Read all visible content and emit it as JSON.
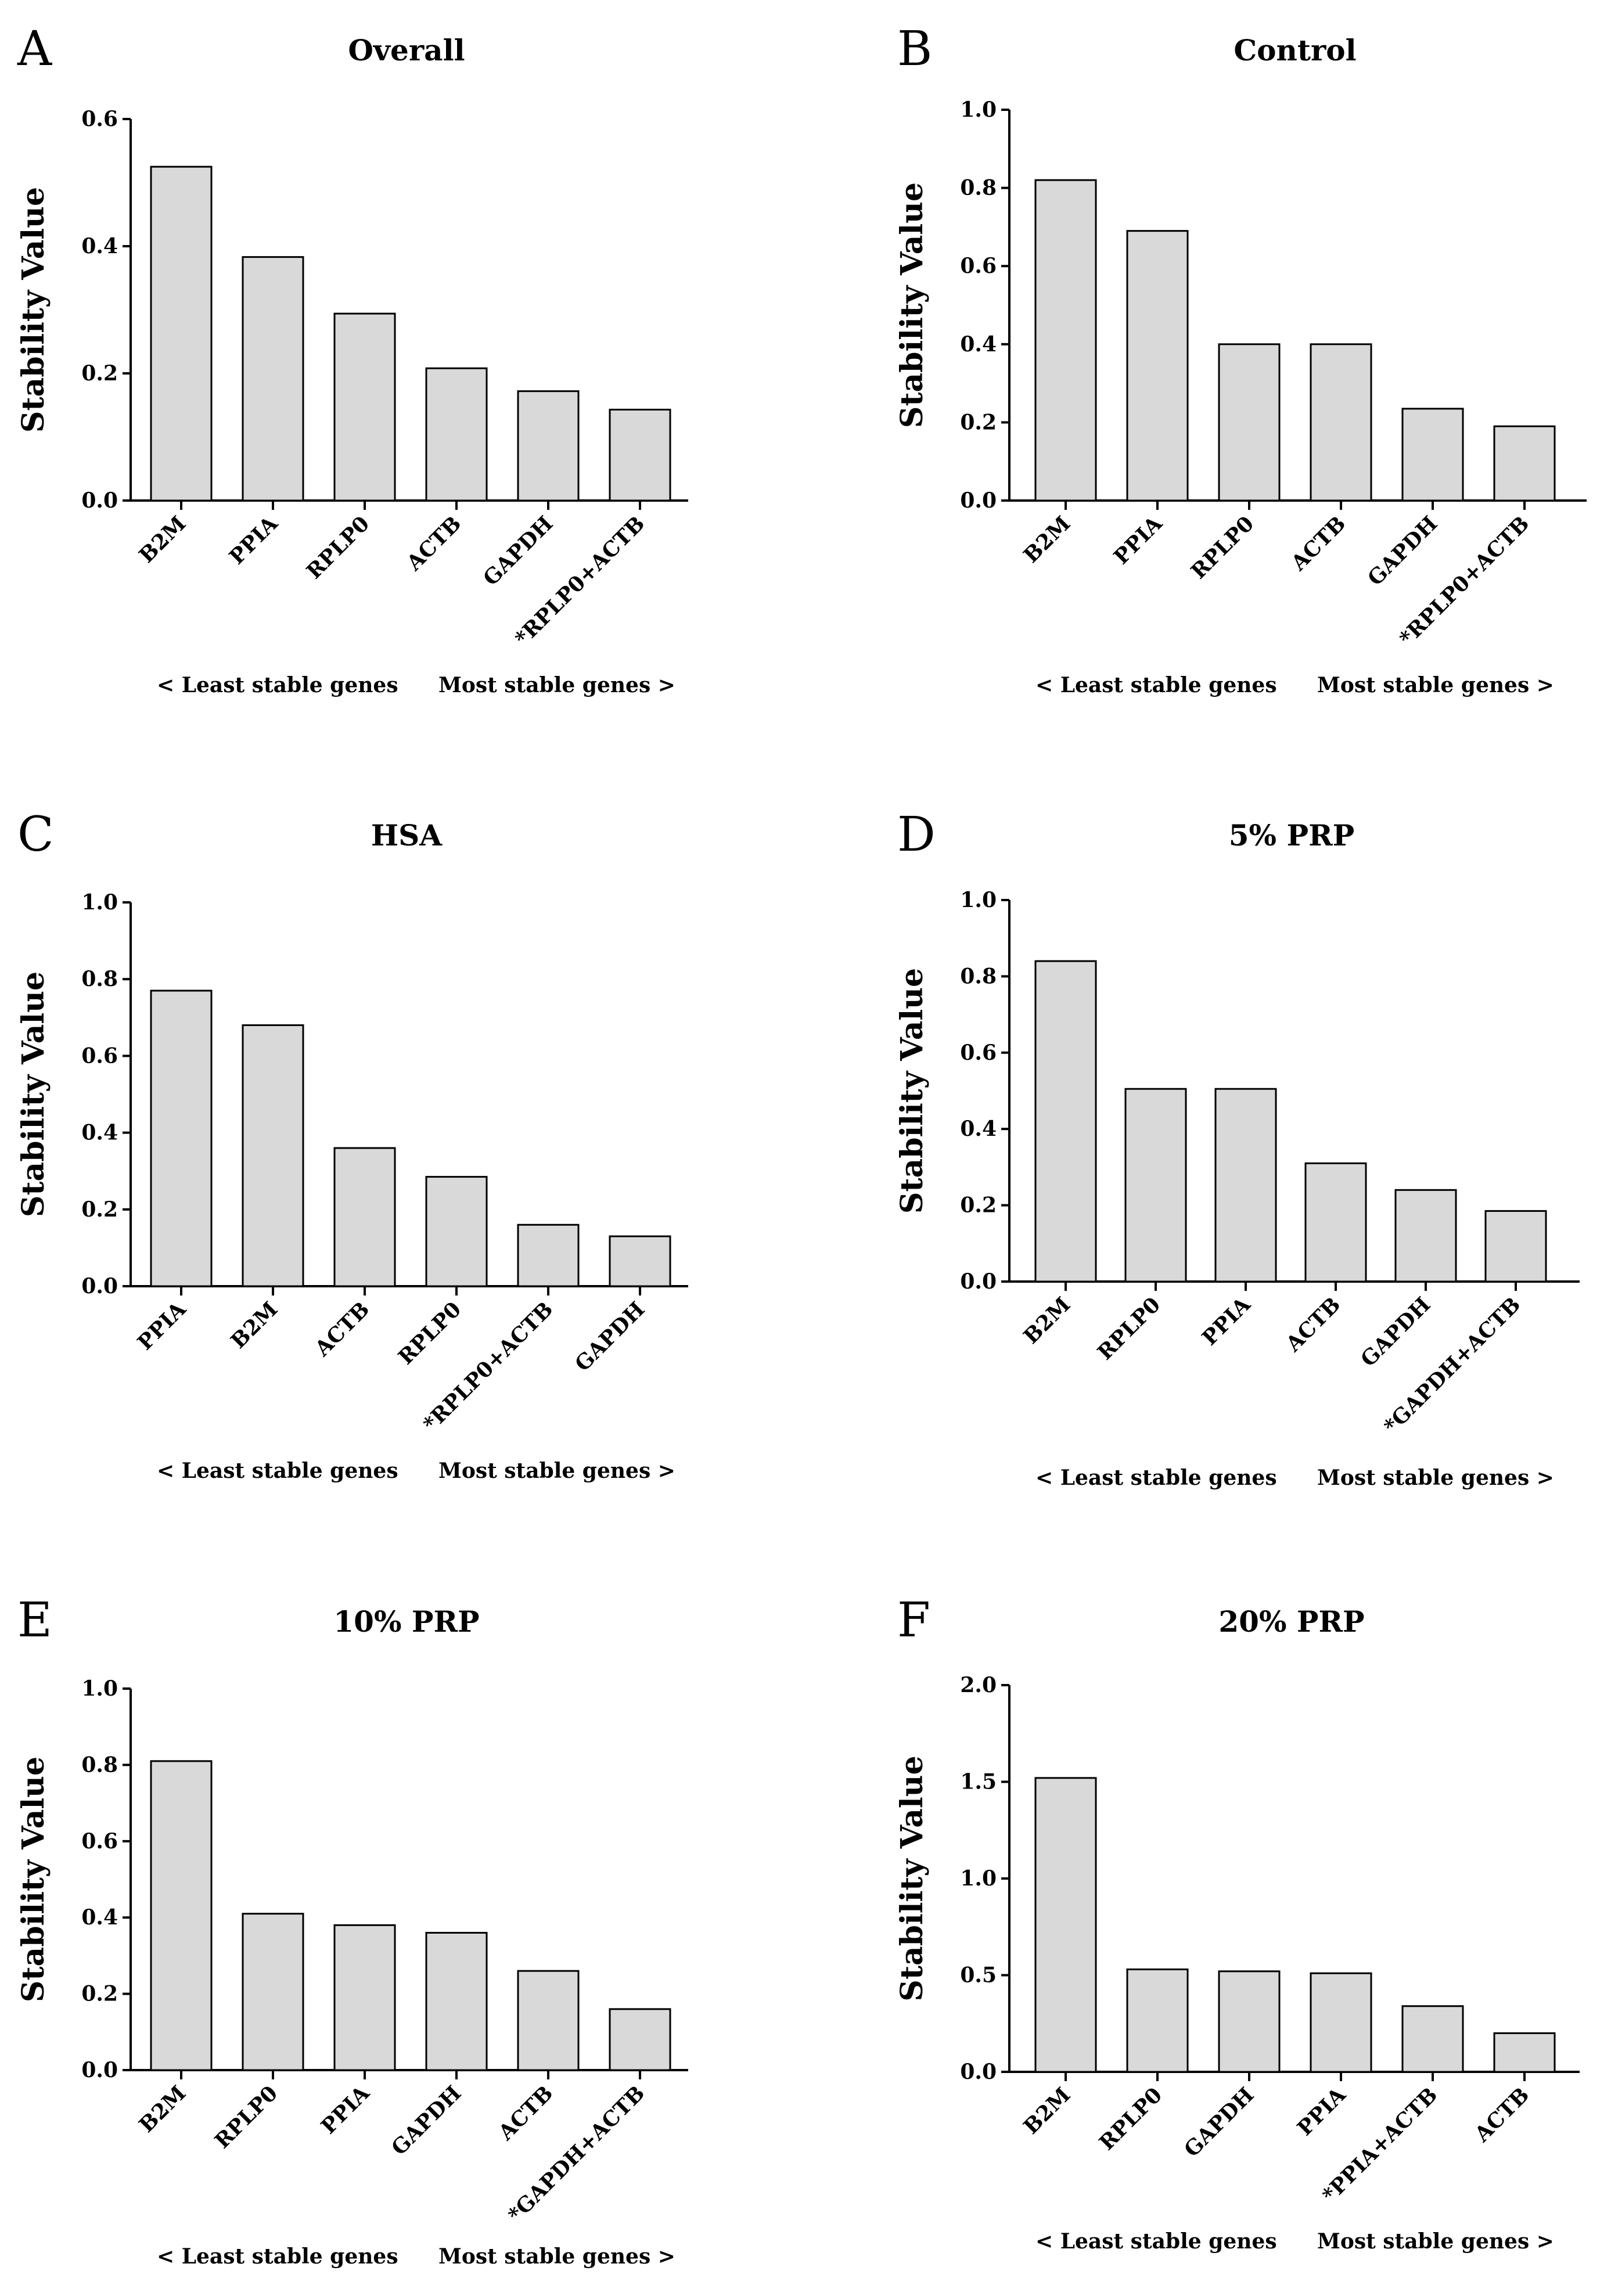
{
  "figure": {
    "ylabel": "Stability Value",
    "footer_left": "< Least stable genes",
    "footer_right": "Most stable genes >"
  },
  "chart_data": [
    {
      "panel": "A",
      "title": "Overall",
      "type": "bar",
      "categories": [
        "B2M",
        "PPIA",
        "RPLP0",
        "ACTB",
        "GAPDH",
        "*RPLP0+ACTB"
      ],
      "values": [
        0.525,
        0.383,
        0.294,
        0.208,
        0.172,
        0.143
      ],
      "ylim": [
        0,
        0.6
      ],
      "yticks": [
        "0.0",
        "0.2",
        "0.4",
        "0.6"
      ],
      "ylabel": "Stability Value"
    },
    {
      "panel": "B",
      "title": "Control",
      "type": "bar",
      "categories": [
        "B2M",
        "PPIA",
        "RPLP0",
        "ACTB",
        "GAPDH",
        "*RPLP0+ACTB"
      ],
      "values": [
        0.82,
        0.69,
        0.4,
        0.4,
        0.235,
        0.19
      ],
      "ylim": [
        0,
        1.0
      ],
      "yticks": [
        "0.0",
        "0.2",
        "0.4",
        "0.6",
        "0.8",
        "1.0"
      ],
      "ylabel": "Stability Value"
    },
    {
      "panel": "C",
      "title": "HSA",
      "type": "bar",
      "categories": [
        "PPIA",
        "B2M",
        "ACTB",
        "RPLP0",
        "*RPLP0+ACTB",
        "GAPDH"
      ],
      "values": [
        0.77,
        0.68,
        0.36,
        0.285,
        0.16,
        0.13
      ],
      "ylim": [
        0,
        1.0
      ],
      "yticks": [
        "0.0",
        "0.2",
        "0.4",
        "0.6",
        "0.8",
        "1.0"
      ],
      "ylabel": "Stability Value"
    },
    {
      "panel": "D",
      "title": "5% PRP",
      "type": "bar",
      "categories": [
        "B2M",
        "RPLP0",
        "PPIA",
        "ACTB",
        "GAPDH",
        "*GAPDH+ACTB"
      ],
      "values": [
        0.84,
        0.505,
        0.505,
        0.31,
        0.24,
        0.185
      ],
      "ylim": [
        0,
        1.0
      ],
      "yticks": [
        "0.0",
        "0.2",
        "0.4",
        "0.6",
        "0.8",
        "1.0"
      ],
      "ylabel": "Stability Value"
    },
    {
      "panel": "E",
      "title": "10% PRP",
      "type": "bar",
      "categories": [
        "B2M",
        "RPLP0",
        "PPIA",
        "GAPDH",
        "ACTB",
        "*GAPDH+ACTB"
      ],
      "values": [
        0.81,
        0.41,
        0.38,
        0.36,
        0.26,
        0.16
      ],
      "ylim": [
        0,
        1.0
      ],
      "yticks": [
        "0.0",
        "0.2",
        "0.4",
        "0.6",
        "0.8",
        "1.0"
      ],
      "ylabel": "Stability Value"
    },
    {
      "panel": "F",
      "title": "20% PRP",
      "type": "bar",
      "categories": [
        "B2M",
        "RPLP0",
        "GAPDH",
        "PPIA",
        "*PPIA+ACTB",
        "ACTB"
      ],
      "values": [
        1.52,
        0.53,
        0.52,
        0.51,
        0.34,
        0.2
      ],
      "ylim": [
        0,
        2.0
      ],
      "yticks": [
        "0.0",
        "0.5",
        "1.0",
        "1.5",
        "2.0"
      ],
      "ylabel": "Stability Value"
    }
  ]
}
